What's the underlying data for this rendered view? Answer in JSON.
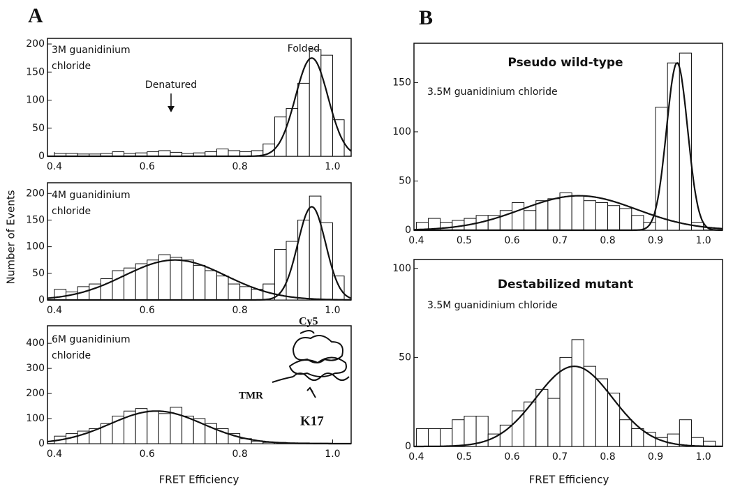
{
  "panels": [
    {
      "label": "A",
      "ylabel": "Number of Events",
      "xlabel": "FRET Efficiency"
    },
    {
      "label": "B",
      "xlabel": "FRET Efficiency"
    }
  ],
  "chart_data": [
    {
      "type": "histogram",
      "notes": [
        "3M guanidinium",
        "chloride"
      ],
      "arrow_label": "Denatured",
      "peak_label": "Folded",
      "color": "#ffffff",
      "bins": [
        0.4,
        0.425,
        0.45,
        0.475,
        0.5,
        0.525,
        0.55,
        0.575,
        0.6,
        0.625,
        0.65,
        0.675,
        0.7,
        0.725,
        0.75,
        0.775,
        0.8,
        0.825,
        0.85,
        0.875,
        0.9,
        0.925,
        0.95,
        0.975,
        1.0,
        1.025
      ],
      "values": [
        5,
        5,
        4,
        4,
        5,
        8,
        5,
        6,
        8,
        10,
        7,
        5,
        6,
        8,
        13,
        10,
        8,
        10,
        22,
        70,
        85,
        130,
        190,
        180,
        65
      ],
      "fits": [
        {
          "amplitude": 175,
          "mean": 0.955,
          "sd": 0.035
        }
      ],
      "xlim": [
        0.385,
        1.04
      ],
      "xticks": [
        0.4,
        0.6,
        0.8,
        {
          "value": 1,
          "label": "1.0"
        }
      ],
      "ylim": [
        0,
        210
      ],
      "yticks": [
        0,
        50,
        100,
        150,
        200
      ]
    },
    {
      "type": "histogram",
      "notes": [
        "4M guanidinium",
        "chloride"
      ],
      "color": "#ffffff",
      "bins": [
        0.4,
        0.425,
        0.45,
        0.475,
        0.5,
        0.525,
        0.55,
        0.575,
        0.6,
        0.625,
        0.65,
        0.675,
        0.7,
        0.725,
        0.75,
        0.775,
        0.8,
        0.825,
        0.85,
        0.875,
        0.9,
        0.925,
        0.95,
        0.975,
        1.0,
        1.025
      ],
      "values": [
        20,
        15,
        25,
        30,
        40,
        55,
        60,
        68,
        75,
        85,
        80,
        75,
        65,
        55,
        45,
        30,
        25,
        20,
        30,
        95,
        110,
        150,
        195,
        145,
        45
      ],
      "fits": [
        {
          "amplitude": 75,
          "mean": 0.66,
          "sd": 0.11
        },
        {
          "amplitude": 175,
          "mean": 0.955,
          "sd": 0.03
        }
      ],
      "xlim": [
        0.385,
        1.04
      ],
      "xticks": [
        0.4,
        0.6,
        0.8,
        {
          "value": 1,
          "label": "1.0"
        }
      ],
      "ylim": [
        0,
        220
      ],
      "yticks": [
        0,
        50,
        100,
        150,
        200
      ]
    },
    {
      "type": "histogram",
      "notes": [
        "6M guanidinium",
        "chloride"
      ],
      "inset_labels": [
        "Cy5",
        "TMR",
        "K17"
      ],
      "color": "#ffffff",
      "bins": [
        0.4,
        0.425,
        0.45,
        0.475,
        0.5,
        0.525,
        0.55,
        0.575,
        0.6,
        0.625,
        0.65,
        0.675,
        0.7,
        0.725,
        0.75,
        0.775,
        0.8,
        0.825,
        0.85,
        0.875,
        0.9,
        0.925,
        0.95,
        0.975,
        1.0,
        1.025
      ],
      "values": [
        30,
        40,
        50,
        60,
        80,
        110,
        130,
        140,
        130,
        120,
        145,
        110,
        100,
        80,
        60,
        40,
        20,
        10,
        5,
        5,
        3,
        3,
        2,
        2,
        1
      ],
      "fits": [
        {
          "amplitude": 130,
          "mean": 0.62,
          "sd": 0.1
        }
      ],
      "xlim": [
        0.385,
        1.04
      ],
      "xticks": [
        0.4,
        0.6,
        0.8,
        {
          "value": 1,
          "label": "1.0"
        }
      ],
      "ylim": [
        0,
        470
      ],
      "yticks": [
        0,
        100,
        200,
        300,
        400
      ]
    },
    {
      "type": "histogram",
      "title": "Pseudo wild-type",
      "notes": [
        "3.5M guanidinium chloride"
      ],
      "color": "#ffffff",
      "bins": [
        0.4,
        0.425,
        0.45,
        0.475,
        0.5,
        0.525,
        0.55,
        0.575,
        0.6,
        0.625,
        0.65,
        0.675,
        0.7,
        0.725,
        0.75,
        0.775,
        0.8,
        0.825,
        0.85,
        0.875,
        0.9,
        0.925,
        0.95,
        0.975,
        1.0
      ],
      "values": [
        8,
        12,
        8,
        10,
        12,
        15,
        15,
        20,
        28,
        20,
        30,
        32,
        38,
        35,
        30,
        28,
        25,
        22,
        15,
        8,
        125,
        170,
        180,
        8
      ],
      "fits": [
        {
          "amplitude": 35,
          "mean": 0.74,
          "sd": 0.12
        },
        {
          "amplitude": 170,
          "mean": 0.945,
          "sd": 0.022
        }
      ],
      "xlim": [
        0.395,
        1.04
      ],
      "xticks": [
        0.4,
        0.5,
        0.6,
        0.7,
        0.8,
        0.9,
        {
          "value": 1,
          "label": "1.0"
        }
      ],
      "ylim": [
        0,
        190
      ],
      "yticks": [
        0,
        50,
        100,
        150
      ]
    },
    {
      "type": "histogram",
      "title": "Destabilized mutant",
      "notes": [
        "3.5M guanidinium chloride"
      ],
      "color": "#ffffff",
      "bins": [
        0.4,
        0.425,
        0.45,
        0.475,
        0.5,
        0.525,
        0.55,
        0.575,
        0.6,
        0.625,
        0.65,
        0.675,
        0.7,
        0.725,
        0.75,
        0.775,
        0.8,
        0.825,
        0.85,
        0.875,
        0.9,
        0.925,
        0.95,
        0.975,
        1.0,
        1.025
      ],
      "values": [
        10,
        10,
        10,
        15,
        17,
        17,
        7,
        12,
        20,
        25,
        32,
        27,
        50,
        60,
        45,
        38,
        30,
        15,
        10,
        8,
        5,
        7,
        15,
        5,
        3
      ],
      "fits": [
        {
          "amplitude": 45,
          "mean": 0.73,
          "sd": 0.08
        }
      ],
      "xlim": [
        0.395,
        1.04
      ],
      "xticks": [
        0.4,
        0.5,
        0.6,
        0.7,
        0.8,
        0.9,
        {
          "value": 1,
          "label": "1.0"
        }
      ],
      "ylim": [
        0,
        105
      ],
      "yticks": [
        0,
        50,
        100
      ]
    }
  ]
}
